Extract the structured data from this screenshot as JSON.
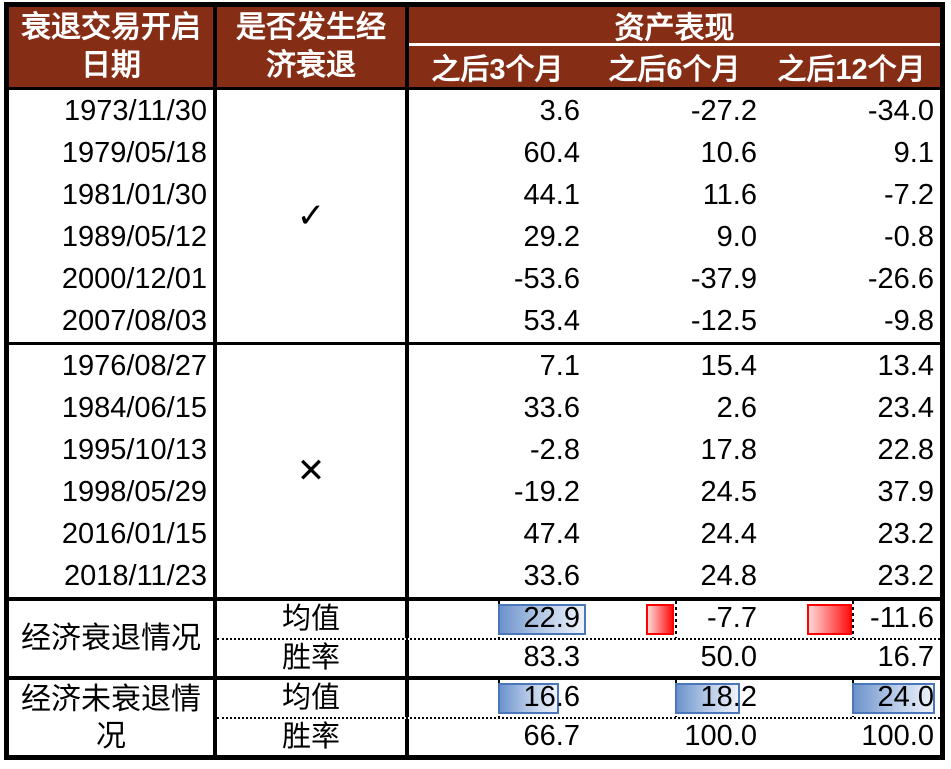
{
  "header": {
    "date_col_line1": "衰退交易开启",
    "date_col_line2": "日期",
    "recession_col_line1": "是否发生经",
    "recession_col_line2": "济衰退",
    "asset_group_title": "资产表现",
    "period_cols": [
      "之后3个月",
      "之后6个月",
      "之后12个月"
    ]
  },
  "recession_block": {
    "mark": "✓",
    "rows": [
      {
        "date": "1973/11/30",
        "m3": "3.6",
        "m6": "-27.2",
        "m12": "-34.0"
      },
      {
        "date": "1979/05/18",
        "m3": "60.4",
        "m6": "10.6",
        "m12": "9.1"
      },
      {
        "date": "1981/01/30",
        "m3": "44.1",
        "m6": "11.6",
        "m12": "-7.2"
      },
      {
        "date": "1989/05/12",
        "m3": "29.2",
        "m6": "9.0",
        "m12": "-0.8"
      },
      {
        "date": "2000/12/01",
        "m3": "-53.6",
        "m6": "-37.9",
        "m12": "-26.6"
      },
      {
        "date": "2007/08/03",
        "m3": "53.4",
        "m6": "-12.5",
        "m12": "-9.8"
      }
    ]
  },
  "no_recession_block": {
    "mark": "✕",
    "rows": [
      {
        "date": "1976/08/27",
        "m3": "7.1",
        "m6": "15.4",
        "m12": "13.4"
      },
      {
        "date": "1984/06/15",
        "m3": "33.6",
        "m6": "2.6",
        "m12": "23.4"
      },
      {
        "date": "1995/10/13",
        "m3": "-2.8",
        "m6": "17.8",
        "m12": "22.8"
      },
      {
        "date": "1998/05/29",
        "m3": "-19.2",
        "m6": "24.5",
        "m12": "37.9"
      },
      {
        "date": "2016/01/15",
        "m3": "47.4",
        "m6": "24.4",
        "m12": "23.2"
      },
      {
        "date": "2018/11/23",
        "m3": "33.6",
        "m6": "24.8",
        "m12": "23.2"
      }
    ]
  },
  "summary_recession": {
    "label": "经济衰退情况",
    "mean_label": "均值",
    "winrate_label": "胜率",
    "mean": [
      {
        "value": "22.9",
        "bar_color": "blue",
        "bar_left_pct": 50,
        "bar_width_pct": 50
      },
      {
        "value": "-7.7",
        "bar_color": "red",
        "bar_left_pct": 34,
        "bar_width_pct": 16
      },
      {
        "value": "-11.6",
        "bar_color": "red",
        "bar_left_pct": 25,
        "bar_width_pct": 25
      }
    ],
    "winrate": [
      "83.3",
      "50.0",
      "16.7"
    ]
  },
  "summary_no_recession": {
    "label": "经济未衰退情况",
    "mean_label": "均值",
    "winrate_label": "胜率",
    "mean": [
      {
        "value": "16.6",
        "bar_color": "blue",
        "bar_left_pct": 50,
        "bar_width_pct": 35
      },
      {
        "value": "18.2",
        "bar_color": "blue",
        "bar_left_pct": 50,
        "bar_width_pct": 37
      },
      {
        "value": "24.0",
        "bar_color": "blue",
        "bar_left_pct": 50,
        "bar_width_pct": 47
      }
    ],
    "winrate": [
      "66.7",
      "100.0",
      "100.0"
    ]
  },
  "colors": {
    "header_bg": "#862D15",
    "header_text": "#FFFFFF",
    "bar_blue_border": "#4A77B9",
    "bar_blue_fill_start": "#6D93CC",
    "bar_blue_fill_end": "#EFF3FB",
    "bar_red_border": "#FF0000",
    "bar_red_fill_start": "#FF1111",
    "bar_red_fill_end": "#FFD6D6"
  },
  "chart_data": {
    "type": "table",
    "title": "衰退交易开启后资产表现",
    "columns": [
      "衰退交易开启日期",
      "是否发生经济衰退",
      "资产表现 之后3个月",
      "资产表现 之后6个月",
      "资产表现 之后12个月"
    ],
    "rows": [
      {
        "date": "1973/11/30",
        "recession": true,
        "m3": 3.6,
        "m6": -27.2,
        "m12": -34.0
      },
      {
        "date": "1979/05/18",
        "recession": true,
        "m3": 60.4,
        "m6": 10.6,
        "m12": 9.1
      },
      {
        "date": "1981/01/30",
        "recession": true,
        "m3": 44.1,
        "m6": 11.6,
        "m12": -7.2
      },
      {
        "date": "1989/05/12",
        "recession": true,
        "m3": 29.2,
        "m6": 9.0,
        "m12": -0.8
      },
      {
        "date": "2000/12/01",
        "recession": true,
        "m3": -53.6,
        "m6": -37.9,
        "m12": -26.6
      },
      {
        "date": "2007/08/03",
        "recession": true,
        "m3": 53.4,
        "m6": -12.5,
        "m12": -9.8
      },
      {
        "date": "1976/08/27",
        "recession": false,
        "m3": 7.1,
        "m6": 15.4,
        "m12": 13.4
      },
      {
        "date": "1984/06/15",
        "recession": false,
        "m3": 33.6,
        "m6": 2.6,
        "m12": 23.4
      },
      {
        "date": "1995/10/13",
        "recession": false,
        "m3": -2.8,
        "m6": 17.8,
        "m12": 22.8
      },
      {
        "date": "1998/05/29",
        "recession": false,
        "m3": -19.2,
        "m6": 24.5,
        "m12": 37.9
      },
      {
        "date": "2016/01/15",
        "recession": false,
        "m3": 47.4,
        "m6": 24.4,
        "m12": 23.2
      },
      {
        "date": "2018/11/23",
        "recession": false,
        "m3": 33.6,
        "m6": 24.8,
        "m12": 23.2
      }
    ],
    "summary": [
      {
        "group": "经济衰退情况",
        "mean": [
          22.9,
          -7.7,
          -11.6
        ],
        "winrate": [
          83.3,
          50.0,
          16.7
        ]
      },
      {
        "group": "经济未衰退情况",
        "mean": [
          16.6,
          18.2,
          24.0
        ],
        "winrate": [
          66.7,
          100.0,
          100.0
        ]
      }
    ]
  }
}
